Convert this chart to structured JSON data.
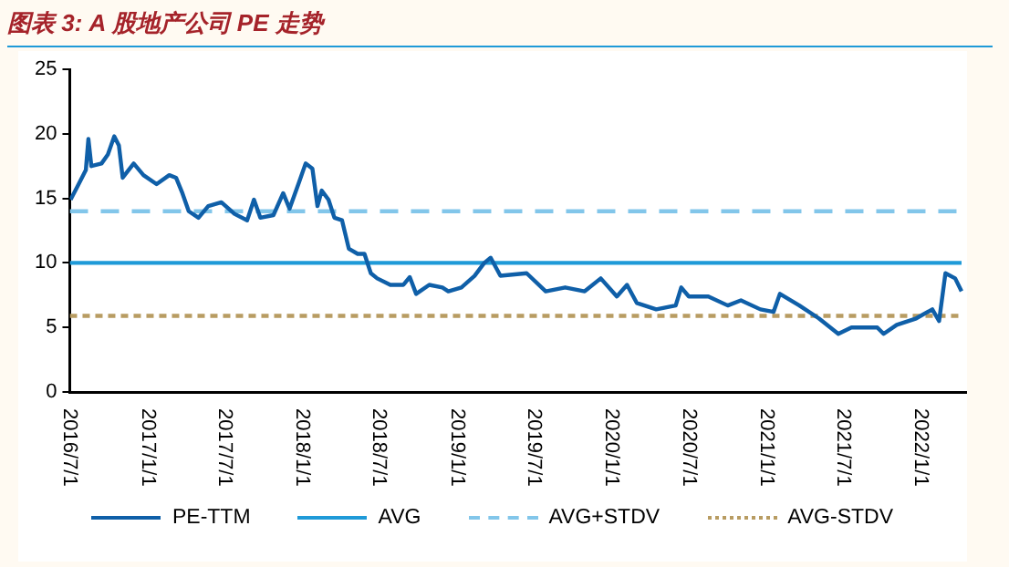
{
  "chart_data": {
    "type": "line",
    "title": "图表 3: A 股地产公司 PE 走势",
    "xlim": [
      "2016-07-01",
      "2022-04-20"
    ],
    "xticks": [
      {
        "value": "2016-07-01",
        "label": "2016/7/1"
      },
      {
        "value": "2017-01-01",
        "label": "2017/1/1"
      },
      {
        "value": "2017-07-01",
        "label": "2017/7/1"
      },
      {
        "value": "2018-01-01",
        "label": "2018/1/1"
      },
      {
        "value": "2018-07-01",
        "label": "2018/7/1"
      },
      {
        "value": "2019-01-01",
        "label": "2019/1/1"
      },
      {
        "value": "2019-07-01",
        "label": "2019/7/1"
      },
      {
        "value": "2020-01-01",
        "label": "2020/1/1"
      },
      {
        "value": "2020-07-01",
        "label": "2020/7/1"
      },
      {
        "value": "2021-01-01",
        "label": "2021/1/1"
      },
      {
        "value": "2021-07-01",
        "label": "2021/7/1"
      },
      {
        "value": "2022-01-01",
        "label": "2022/1/1"
      }
    ],
    "ylim": [
      0,
      25
    ],
    "yticks": [
      0,
      5,
      10,
      15,
      20,
      25
    ],
    "grid": false,
    "legend": "bottom",
    "marker": "none",
    "series": [
      {
        "name": "PE-TTM",
        "color": "#0f5fa8",
        "line_style": "solid",
        "x": [
          "2016-07-03",
          "2016-07-22",
          "2016-08-08",
          "2016-08-14",
          "2016-08-21",
          "2016-09-14",
          "2016-09-29",
          "2016-10-14",
          "2016-10-25",
          "2016-11-03",
          "2016-11-29",
          "2016-12-22",
          "2017-01-22",
          "2017-02-21",
          "2017-03-09",
          "2017-03-24",
          "2017-04-08",
          "2017-05-01",
          "2017-05-24",
          "2017-06-24",
          "2017-07-25",
          "2017-08-24",
          "2017-09-09",
          "2017-09-24",
          "2017-10-25",
          "2017-11-17",
          "2017-12-02",
          "2017-12-25",
          "2018-01-09",
          "2018-01-25",
          "2018-02-06",
          "2018-02-16",
          "2018-03-04",
          "2018-03-18",
          "2018-04-05",
          "2018-04-21",
          "2018-05-12",
          "2018-05-28",
          "2018-06-12",
          "2018-06-27",
          "2018-07-28",
          "2018-08-28",
          "2018-09-12",
          "2018-09-27",
          "2018-10-28",
          "2018-11-28",
          "2018-12-12",
          "2019-01-12",
          "2019-02-12",
          "2019-03-07",
          "2019-03-22",
          "2019-04-14",
          "2019-06-15",
          "2019-07-30",
          "2019-09-14",
          "2019-10-30",
          "2019-12-07",
          "2020-01-14",
          "2020-02-07",
          "2020-03-01",
          "2020-04-16",
          "2020-06-01",
          "2020-06-14",
          "2020-07-02",
          "2020-08-17",
          "2020-10-02",
          "2020-11-02",
          "2020-12-18",
          "2021-01-18",
          "2021-02-02",
          "2021-03-20",
          "2021-05-05",
          "2021-06-20",
          "2021-07-21",
          "2021-08-20",
          "2021-09-20",
          "2021-10-05",
          "2021-11-05",
          "2021-12-21",
          "2022-01-28",
          "2022-02-13",
          "2022-02-28",
          "2022-03-23",
          "2022-04-07"
        ],
        "values": [
          14.9,
          16.1,
          17.2,
          19.6,
          17.5,
          17.7,
          18.4,
          19.8,
          19.1,
          16.6,
          17.7,
          16.8,
          16.1,
          16.8,
          16.6,
          15.4,
          14,
          13.5,
          14.4,
          14.7,
          13.8,
          13.3,
          14.9,
          13.5,
          13.7,
          15.4,
          14.2,
          16.3,
          17.7,
          17.3,
          14.4,
          15.6,
          14.9,
          13.5,
          13.3,
          11.1,
          10.7,
          10.7,
          9.2,
          8.8,
          8.3,
          8.3,
          8.9,
          7.6,
          8.3,
          8.1,
          7.8,
          8.1,
          9,
          10,
          10.4,
          9,
          9.2,
          7.8,
          8.1,
          7.8,
          8.8,
          7.4,
          8.3,
          6.9,
          6.4,
          6.7,
          8.1,
          7.4,
          7.4,
          6.7,
          7.1,
          6.4,
          6.2,
          7.6,
          6.7,
          5.7,
          4.5,
          5,
          5,
          5,
          4.5,
          5.2,
          5.7,
          6.4,
          5.5,
          9.2,
          8.8,
          7.8
        ]
      },
      {
        "name": "AVG",
        "color": "#1f9ad8",
        "line_style": "solid",
        "x": [
          "2016-07-01",
          "2022-04-07"
        ],
        "values": [
          10,
          10
        ]
      },
      {
        "name": "AVG+STDV",
        "color": "#82c6ea",
        "line_style": "dashed",
        "x": [
          "2016-07-01",
          "2022-04-07"
        ],
        "values": [
          14,
          14
        ]
      },
      {
        "name": "AVG-STDV",
        "color": "#b89c62",
        "line_style": "dotted",
        "x": [
          "2016-07-01",
          "2022-04-07"
        ],
        "values": [
          5.9,
          5.9
        ]
      }
    ]
  }
}
